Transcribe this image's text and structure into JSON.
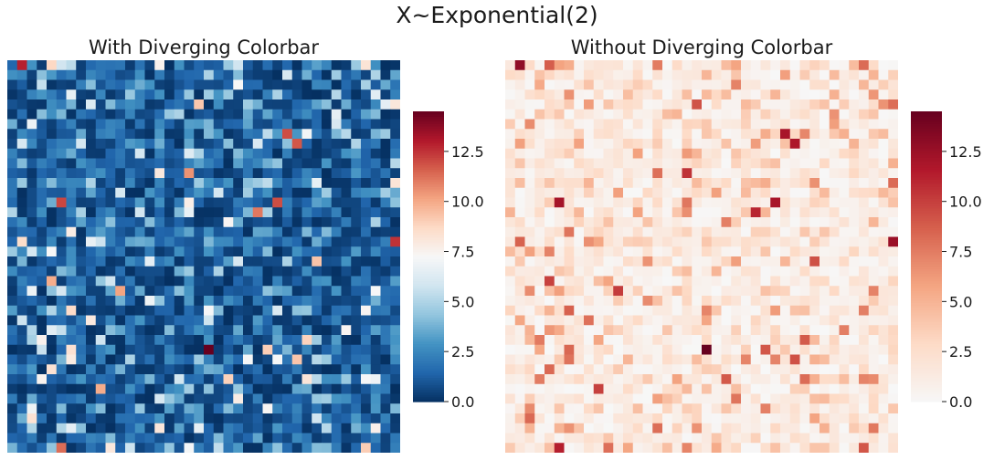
{
  "suptitle": "X~Exponential(2)",
  "chart_data": [
    {
      "type": "heatmap",
      "title": "With Diverging Colorbar",
      "colormap": "RdBu_r",
      "diverging": true,
      "grid": "40x40",
      "distribution": "Exponential(2)",
      "vmin": 0.0,
      "vmax": 14.5,
      "center": 7.25,
      "colorbar_ticks": [
        "0.0",
        "2.5",
        "5.0",
        "7.5",
        "10.0",
        "12.5"
      ],
      "colorbar_tick_values": [
        0.0,
        2.5,
        5.0,
        7.5,
        10.0,
        12.5
      ],
      "axis_ticks": "off"
    },
    {
      "type": "heatmap",
      "title": "Without Diverging Colorbar",
      "colormap": "Reds-half of RdBu_r",
      "diverging": false,
      "grid": "40x40",
      "distribution": "Exponential(2)",
      "vmin": 0.0,
      "vmax": 14.5,
      "colorbar_ticks": [
        "0.0",
        "2.5",
        "5.0",
        "7.5",
        "10.0",
        "12.5"
      ],
      "colorbar_tick_values": [
        0.0,
        2.5,
        5.0,
        7.5,
        10.0,
        12.5
      ],
      "axis_ticks": "off"
    }
  ]
}
